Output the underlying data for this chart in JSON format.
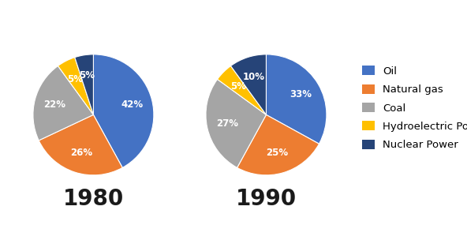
{
  "chart1_label": "1980",
  "chart2_label": "1990",
  "categories": [
    "Oil",
    "Natural gas",
    "Coal",
    "Hydroelectric Power",
    "Nuclear Power"
  ],
  "colors": [
    "#4472C4",
    "#ED7D31",
    "#A5A5A5",
    "#FFC000",
    "#264478"
  ],
  "values_1980": [
    42,
    26,
    22,
    5,
    5
  ],
  "values_1990": [
    33,
    25,
    27,
    5,
    10
  ],
  "labels_1980": [
    "42%",
    "26%",
    "22%",
    "5%",
    "5%"
  ],
  "labels_1990": [
    "33%",
    "25%",
    "27%",
    "5%",
    "10%"
  ],
  "startangle_1980": 90,
  "startangle_1990": 90,
  "background_color": "#ffffff",
  "label_fontsize": 8.5,
  "title_fontsize": 20,
  "legend_fontsize": 9.5,
  "title_color": "#1a1a1a"
}
